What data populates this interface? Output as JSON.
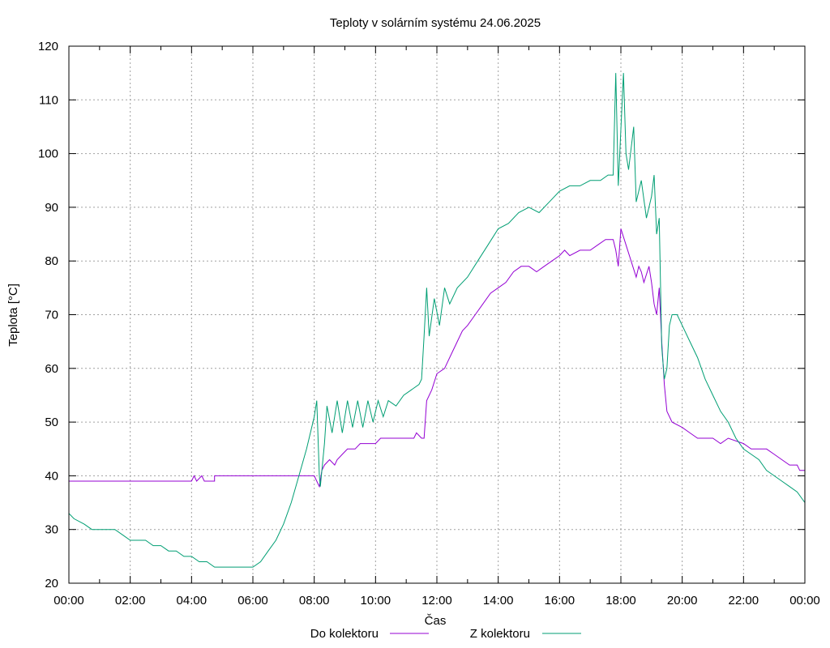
{
  "chart_data": {
    "type": "line",
    "title": "Teploty v solárním systému 24.06.2025",
    "xlabel": "Čas",
    "ylabel": "Teplota [°C]",
    "ylim": [
      20,
      120
    ],
    "yticks": [
      "20",
      "30",
      "40",
      "50",
      "60",
      "70",
      "80",
      "90",
      "100",
      "110",
      "120"
    ],
    "xlim_hours": [
      0,
      24
    ],
    "xticks": [
      "00:00",
      "02:00",
      "04:00",
      "06:00",
      "08:00",
      "10:00",
      "12:00",
      "14:00",
      "16:00",
      "18:00",
      "20:00",
      "22:00",
      "00:00"
    ],
    "grid": true,
    "legend_position": "bottom",
    "series": [
      {
        "name": "Do kolektoru",
        "color": "#9400d3",
        "points": [
          [
            "00:00",
            39
          ],
          [
            "04:00",
            39
          ],
          [
            "04:05",
            40
          ],
          [
            "04:10",
            39
          ],
          [
            "04:20",
            40
          ],
          [
            "04:25",
            39
          ],
          [
            "04:45",
            39
          ],
          [
            "04:45",
            40
          ],
          [
            "08:00",
            40
          ],
          [
            "08:05",
            39
          ],
          [
            "08:10",
            38
          ],
          [
            "08:15",
            41
          ],
          [
            "08:20",
            42
          ],
          [
            "08:30",
            43
          ],
          [
            "08:40",
            42
          ],
          [
            "08:45",
            43
          ],
          [
            "08:55",
            44
          ],
          [
            "09:05",
            45
          ],
          [
            "09:20",
            45
          ],
          [
            "09:30",
            46
          ],
          [
            "10:00",
            46
          ],
          [
            "10:10",
            47
          ],
          [
            "11:15",
            47
          ],
          [
            "11:20",
            48
          ],
          [
            "11:30",
            47
          ],
          [
            "11:35",
            47
          ],
          [
            "11:40",
            54
          ],
          [
            "11:50",
            56
          ],
          [
            "12:00",
            59
          ],
          [
            "12:15",
            60
          ],
          [
            "12:20",
            61
          ],
          [
            "12:30",
            63
          ],
          [
            "12:40",
            65
          ],
          [
            "12:50",
            67
          ],
          [
            "13:00",
            68
          ],
          [
            "13:15",
            70
          ],
          [
            "13:30",
            72
          ],
          [
            "13:45",
            74
          ],
          [
            "14:00",
            75
          ],
          [
            "14:15",
            76
          ],
          [
            "14:30",
            78
          ],
          [
            "14:45",
            79
          ],
          [
            "15:00",
            79
          ],
          [
            "15:15",
            78
          ],
          [
            "15:30",
            79
          ],
          [
            "15:45",
            80
          ],
          [
            "16:00",
            81
          ],
          [
            "16:10",
            82
          ],
          [
            "16:20",
            81
          ],
          [
            "16:40",
            82
          ],
          [
            "17:00",
            82
          ],
          [
            "17:15",
            83
          ],
          [
            "17:30",
            84
          ],
          [
            "17:45",
            84
          ],
          [
            "17:50",
            82
          ],
          [
            "17:55",
            79
          ],
          [
            "18:00",
            86
          ],
          [
            "18:10",
            83
          ],
          [
            "18:20",
            80
          ],
          [
            "18:30",
            77
          ],
          [
            "18:35",
            79
          ],
          [
            "18:40",
            78
          ],
          [
            "18:45",
            76
          ],
          [
            "18:55",
            79
          ],
          [
            "19:00",
            76
          ],
          [
            "19:05",
            72
          ],
          [
            "19:10",
            70
          ],
          [
            "19:15",
            75
          ],
          [
            "19:20",
            65
          ],
          [
            "19:25",
            57
          ],
          [
            "19:30",
            52
          ],
          [
            "19:40",
            50
          ],
          [
            "20:00",
            49
          ],
          [
            "20:15",
            48
          ],
          [
            "20:30",
            47
          ],
          [
            "21:00",
            47
          ],
          [
            "21:15",
            46
          ],
          [
            "21:30",
            47
          ],
          [
            "22:00",
            46
          ],
          [
            "22:15",
            45
          ],
          [
            "22:45",
            45
          ],
          [
            "23:00",
            44
          ],
          [
            "23:15",
            43
          ],
          [
            "23:30",
            42
          ],
          [
            "23:45",
            42
          ],
          [
            "23:50",
            41
          ],
          [
            "24:00",
            41
          ]
        ]
      },
      {
        "name": "Z kolektoru",
        "color": "#009e73",
        "points": [
          [
            "00:00",
            33
          ],
          [
            "00:10",
            32
          ],
          [
            "00:30",
            31
          ],
          [
            "00:45",
            30
          ],
          [
            "01:30",
            30
          ],
          [
            "01:45",
            29
          ],
          [
            "02:00",
            28
          ],
          [
            "02:30",
            28
          ],
          [
            "02:45",
            27
          ],
          [
            "03:00",
            27
          ],
          [
            "03:15",
            26
          ],
          [
            "03:30",
            26
          ],
          [
            "03:45",
            25
          ],
          [
            "04:00",
            25
          ],
          [
            "04:15",
            24
          ],
          [
            "04:30",
            24
          ],
          [
            "04:45",
            23
          ],
          [
            "05:00",
            23
          ],
          [
            "06:00",
            23
          ],
          [
            "06:15",
            24
          ],
          [
            "06:30",
            26
          ],
          [
            "06:45",
            28
          ],
          [
            "07:00",
            31
          ],
          [
            "07:15",
            35
          ],
          [
            "07:30",
            40
          ],
          [
            "07:45",
            45
          ],
          [
            "08:00",
            51
          ],
          [
            "08:05",
            54
          ],
          [
            "08:10",
            40
          ],
          [
            "08:12",
            38
          ],
          [
            "08:20",
            46
          ],
          [
            "08:25",
            53
          ],
          [
            "08:35",
            48
          ],
          [
            "08:45",
            54
          ],
          [
            "08:55",
            48
          ],
          [
            "09:05",
            54
          ],
          [
            "09:15",
            49
          ],
          [
            "09:25",
            54
          ],
          [
            "09:35",
            49
          ],
          [
            "09:45",
            54
          ],
          [
            "09:55",
            50
          ],
          [
            "10:05",
            54
          ],
          [
            "10:15",
            51
          ],
          [
            "10:25",
            54
          ],
          [
            "10:40",
            53
          ],
          [
            "10:55",
            55
          ],
          [
            "11:10",
            56
          ],
          [
            "11:25",
            57
          ],
          [
            "11:30",
            58
          ],
          [
            "11:35",
            66
          ],
          [
            "11:40",
            75
          ],
          [
            "11:45",
            66
          ],
          [
            "11:55",
            73
          ],
          [
            "12:05",
            68
          ],
          [
            "12:15",
            75
          ],
          [
            "12:25",
            72
          ],
          [
            "12:40",
            75
          ],
          [
            "13:00",
            77
          ],
          [
            "13:20",
            80
          ],
          [
            "13:40",
            83
          ],
          [
            "14:00",
            86
          ],
          [
            "14:20",
            87
          ],
          [
            "14:40",
            89
          ],
          [
            "15:00",
            90
          ],
          [
            "15:20",
            89
          ],
          [
            "15:40",
            91
          ],
          [
            "16:00",
            93
          ],
          [
            "16:20",
            94
          ],
          [
            "16:40",
            94
          ],
          [
            "17:00",
            95
          ],
          [
            "17:20",
            95
          ],
          [
            "17:35",
            96
          ],
          [
            "17:45",
            96
          ],
          [
            "17:50",
            115
          ],
          [
            "17:55",
            94
          ],
          [
            "18:05",
            115
          ],
          [
            "18:10",
            100
          ],
          [
            "18:15",
            97
          ],
          [
            "18:25",
            105
          ],
          [
            "18:30",
            91
          ],
          [
            "18:40",
            95
          ],
          [
            "18:50",
            88
          ],
          [
            "19:00",
            92
          ],
          [
            "19:05",
            96
          ],
          [
            "19:10",
            85
          ],
          [
            "19:15",
            88
          ],
          [
            "19:20",
            64
          ],
          [
            "19:25",
            58
          ],
          [
            "19:30",
            60
          ],
          [
            "19:35",
            68
          ],
          [
            "19:40",
            70
          ],
          [
            "19:50",
            70
          ],
          [
            "20:00",
            68
          ],
          [
            "20:15",
            65
          ],
          [
            "20:30",
            62
          ],
          [
            "20:45",
            58
          ],
          [
            "21:00",
            55
          ],
          [
            "21:15",
            52
          ],
          [
            "21:30",
            50
          ],
          [
            "21:45",
            47
          ],
          [
            "22:00",
            45
          ],
          [
            "22:15",
            44
          ],
          [
            "22:30",
            43
          ],
          [
            "22:45",
            41
          ],
          [
            "23:00",
            40
          ],
          [
            "23:15",
            39
          ],
          [
            "23:30",
            38
          ],
          [
            "23:45",
            37
          ],
          [
            "24:00",
            35
          ]
        ]
      }
    ]
  }
}
